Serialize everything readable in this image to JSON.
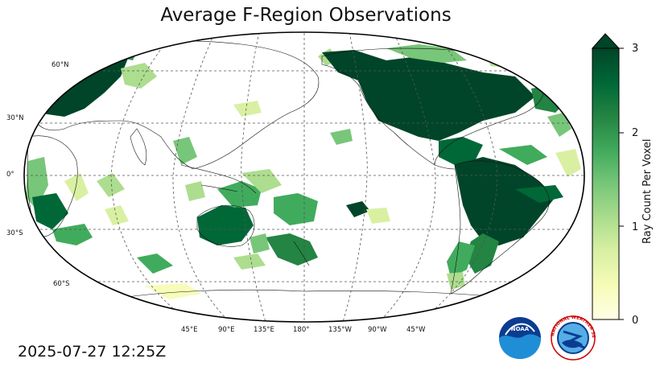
{
  "title": "Average F-Region Observations",
  "timestamp": "2025-07-27 12:25Z",
  "lat_labels": [
    "60°N",
    "30°N",
    "0°",
    "30°S",
    "60°S"
  ],
  "lon_labels": [
    "45°E",
    "90°E",
    "135°E",
    "180°",
    "135°W",
    "90°W",
    "45°W"
  ],
  "colorbar": {
    "label": "Ray Count Per Voxel",
    "ticks": [
      "0",
      "1",
      "2",
      "3"
    ],
    "min": 0,
    "max": 3,
    "colors": [
      "#ffffe5",
      "#f7fcb9",
      "#d9f0a3",
      "#addd8e",
      "#78c679",
      "#41ab5d",
      "#238443",
      "#006837",
      "#004529"
    ]
  },
  "logos": {
    "noaa": "NOAA",
    "nws": "NATIONAL WEATHER SERVICE"
  }
}
